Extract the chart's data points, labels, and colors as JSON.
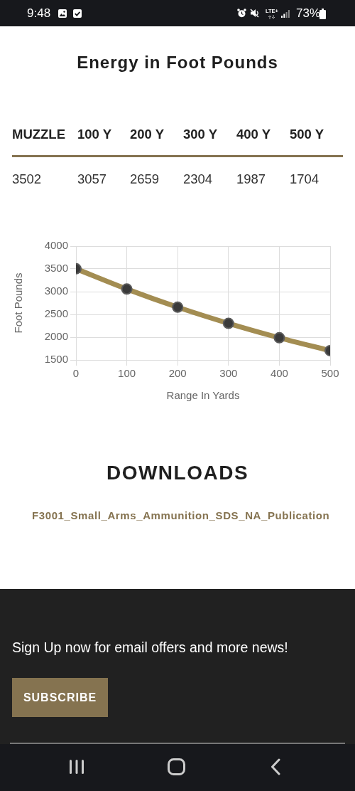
{
  "chart_data": {
    "type": "line",
    "title": "Energy in Foot Pounds",
    "xlabel": "Range In Yards",
    "ylabel": "Foot Pounds",
    "x": [
      0,
      100,
      200,
      300,
      400,
      500
    ],
    "values": [
      3502,
      3057,
      2659,
      2304,
      1987,
      1704
    ],
    "color": "#a38d52",
    "xlim": [
      0,
      500
    ],
    "xticks": [
      0,
      100,
      200,
      300,
      400,
      500
    ],
    "ylim": [
      1500,
      4000
    ],
    "yticks": [
      1500,
      2000,
      2500,
      3000,
      3500,
      4000
    ],
    "grid": true,
    "marker": "circle",
    "line_style": "solid",
    "annotations": [
      "9:48",
      "LTE+",
      "73%",
      "MUZZLE",
      "100 Y",
      "200 Y",
      "300 Y",
      "400 Y",
      "500 Y",
      "3502",
      "3057",
      "2659",
      "2304",
      "1987",
      "1704",
      "DOWNLOADS",
      "F3001_Small_Arms_Ammunition_SDS_NA_Publication",
      "Sign Up now for email offers and more news!",
      "SUBSCRIBE"
    ]
  }
}
